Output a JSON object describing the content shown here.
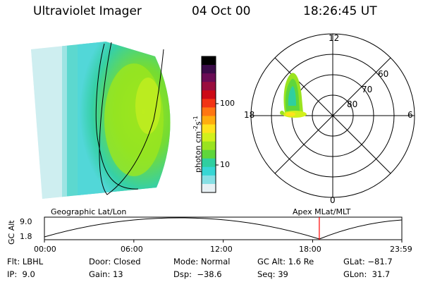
{
  "header": {
    "instrument": "Ultraviolet Imager",
    "date": "04 Oct 00",
    "time": "18:26:45 UT"
  },
  "colorbar": {
    "unit": "photon cm",
    "unit_exp1": "-2",
    "unit_mid": "s",
    "unit_exp2": "-1",
    "ticks": [
      {
        "label": "100",
        "value": 100
      },
      {
        "label": "10",
        "value": 10
      }
    ],
    "colors": [
      "#000000",
      "#3a0b48",
      "#6a0c55",
      "#9a0d3e",
      "#cc0a16",
      "#f23414",
      "#ff7612",
      "#ffad0e",
      "#ffe21c",
      "#d2f01b",
      "#9ae31f",
      "#5fd63b",
      "#2fcfa0",
      "#37d6d4",
      "#87dfe4",
      "#e7f0f4"
    ]
  },
  "polar_plot": {
    "mlt_labels": [
      "12",
      "18",
      "6",
      "0"
    ],
    "lat_labels": [
      "60",
      "70",
      "80"
    ]
  },
  "orbit_plot": {
    "left_title": "Geographic Lat/Lon",
    "right_title": "Apex  MLat/MLT",
    "ylabel": "GC Alt",
    "y_ticks": [
      "9.0",
      "1.8"
    ],
    "x_ticks": [
      "00:00",
      "06:00",
      "12:00",
      "18:00",
      "23:59"
    ],
    "current_time_marker": "18:26:45",
    "marker_color": "#ff0000"
  },
  "info": {
    "flt_label": "Flt:",
    "flt_value": "LBHL",
    "ip_label": "IP:",
    "ip_value": "9.0",
    "door_label": "Door:",
    "door_value": "Closed",
    "gain_label": "Gain:",
    "gain_value": "13",
    "mode_label": "Mode:",
    "mode_value": "Normal",
    "dsp_label": "Dsp:",
    "dsp_value": "−38.6",
    "gcalt_label": "GC Alt:",
    "gcalt_value": "1.6 Re",
    "seq_label": "Seq:",
    "seq_value": "39",
    "glat_label": "GLat:",
    "glat_value": "−81.7",
    "glon_label": "GLon:",
    "glon_value": "31.7"
  }
}
